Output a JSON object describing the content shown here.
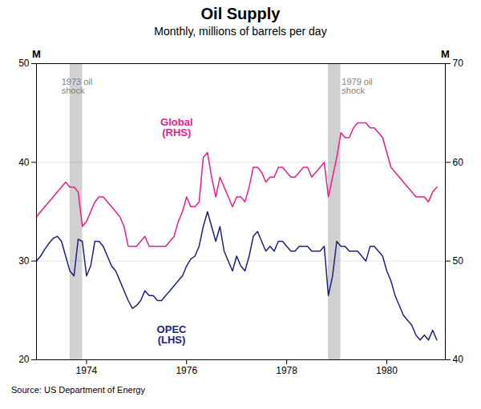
{
  "chart_data": {
    "type": "line",
    "title": "Oil Supply",
    "subtitle": "Monthly, millions of barrels per day",
    "source": "Source: US Department of Energy",
    "ylabel": "M",
    "y2label": "M",
    "xlim": [
      1973.0,
      1981.17
    ],
    "xticks": [
      1974,
      1976,
      1978,
      1980
    ],
    "ylim": [
      20,
      50
    ],
    "yticks": [
      20,
      30,
      40,
      50
    ],
    "y2lim": [
      40,
      70
    ],
    "y2ticks": [
      40,
      50,
      60,
      70
    ],
    "grid": true,
    "x": [
      1973.0,
      1973.083,
      1973.167,
      1973.25,
      1973.333,
      1973.417,
      1973.5,
      1973.583,
      1973.667,
      1973.75,
      1973.833,
      1973.917,
      1974.0,
      1974.083,
      1974.167,
      1974.25,
      1974.333,
      1974.417,
      1974.5,
      1974.583,
      1974.667,
      1974.75,
      1974.833,
      1974.917,
      1975.0,
      1975.083,
      1975.167,
      1975.25,
      1975.333,
      1975.417,
      1975.5,
      1975.583,
      1975.667,
      1975.75,
      1975.833,
      1975.917,
      1976.0,
      1976.083,
      1976.167,
      1976.25,
      1976.333,
      1976.417,
      1976.5,
      1976.583,
      1976.667,
      1976.75,
      1976.833,
      1976.917,
      1977.0,
      1977.083,
      1977.167,
      1977.25,
      1977.333,
      1977.417,
      1977.5,
      1977.583,
      1977.667,
      1977.75,
      1977.833,
      1977.917,
      1978.0,
      1978.083,
      1978.167,
      1978.25,
      1978.333,
      1978.417,
      1978.5,
      1978.583,
      1978.667,
      1978.75,
      1978.833,
      1978.917,
      1979.0,
      1979.083,
      1979.167,
      1979.25,
      1979.333,
      1979.417,
      1979.5,
      1979.583,
      1979.667,
      1979.75,
      1979.833,
      1979.917,
      1980.0,
      1980.083,
      1980.167,
      1980.25,
      1980.333,
      1980.417,
      1980.5,
      1980.583,
      1980.667,
      1980.75,
      1980.833,
      1980.917,
      1981.0
    ],
    "series": [
      {
        "name": "OPEC\n(LHS)",
        "color": "#1a237e",
        "axis": "y",
        "label_x": 1975.7,
        "label_y": 23.5,
        "values": [
          30.0,
          30.5,
          31.2,
          31.8,
          32.3,
          32.5,
          32.0,
          30.5,
          29.0,
          28.5,
          32.2,
          32.0,
          28.5,
          29.5,
          32.0,
          32.0,
          31.5,
          30.5,
          29.5,
          29.0,
          28.0,
          27.0,
          26.0,
          25.2,
          25.5,
          26.0,
          27.0,
          26.5,
          26.5,
          26.0,
          26.0,
          26.5,
          27.0,
          27.5,
          28.0,
          28.5,
          29.5,
          30.2,
          30.5,
          31.5,
          33.5,
          35.0,
          33.5,
          32.0,
          33.5,
          31.0,
          30.0,
          29.0,
          30.5,
          29.5,
          29.0,
          30.5,
          32.5,
          33.0,
          32.0,
          31.0,
          31.5,
          31.0,
          32.0,
          32.0,
          31.5,
          31.0,
          31.0,
          31.5,
          31.5,
          31.5,
          31.0,
          31.0,
          31.0,
          31.5,
          26.5,
          28.5,
          32.0,
          31.5,
          31.5,
          31.0,
          31.0,
          31.0,
          30.5,
          30.0,
          31.5,
          31.5,
          31.0,
          30.5,
          29.0,
          28.0,
          26.5,
          25.5,
          24.5,
          24.0,
          23.5,
          22.5,
          22.0,
          22.5,
          22.0,
          23.0,
          22.0
        ]
      },
      {
        "name": "Global\n(RHS)",
        "color": "#e91e8c",
        "axis": "y2",
        "label_x": 1975.8,
        "label_y": 44.5,
        "values": [
          54.5,
          55.0,
          55.5,
          56.0,
          56.5,
          57.0,
          57.5,
          58.0,
          57.5,
          57.5,
          57.0,
          53.5,
          54.0,
          55.0,
          56.0,
          56.5,
          56.5,
          56.0,
          55.5,
          55.0,
          54.5,
          53.5,
          51.5,
          51.5,
          51.5,
          52.0,
          52.5,
          51.5,
          51.5,
          51.5,
          51.5,
          51.5,
          52.0,
          52.5,
          54.0,
          55.0,
          56.5,
          55.5,
          55.5,
          56.0,
          60.5,
          61.0,
          58.5,
          56.5,
          58.5,
          57.5,
          56.5,
          55.5,
          56.5,
          56.5,
          56.0,
          57.5,
          59.5,
          59.5,
          59.0,
          58.0,
          58.5,
          58.5,
          59.5,
          59.5,
          59.0,
          58.5,
          58.5,
          59.0,
          59.5,
          59.5,
          58.5,
          59.0,
          59.5,
          60.0,
          56.5,
          58.5,
          60.5,
          63.0,
          62.5,
          62.5,
          63.5,
          64.0,
          64.0,
          64.0,
          63.5,
          63.5,
          63.0,
          62.5,
          61.0,
          59.5,
          59.0,
          58.5,
          58.0,
          57.5,
          57.0,
          56.5,
          56.5,
          56.5,
          56.0,
          57.0,
          57.5
        ]
      }
    ],
    "shaded_regions": [
      {
        "x1": 1973.67,
        "x2": 1973.92
      },
      {
        "x1": 1978.83,
        "x2": 1979.08
      }
    ],
    "annotations": [
      {
        "text": "1973 oil\nshock",
        "x": 1973.5,
        "y": 48.5
      },
      {
        "text": "1979 oil\nshock",
        "x": 1979.1,
        "y": 48.5
      }
    ]
  }
}
